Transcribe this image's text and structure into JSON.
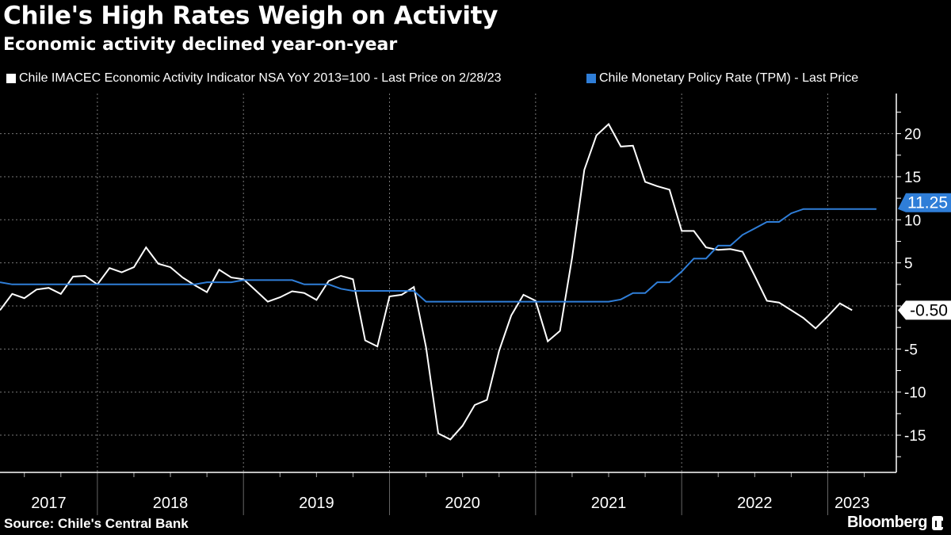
{
  "title": "Chile's High Rates Weigh on Activity",
  "subtitle": "Economic activity declined year-on-year",
  "source": "Source: Chile's Central Bank",
  "brand": "Bloomberg",
  "colors": {
    "background": "#000000",
    "imacec": "#ffffff",
    "tpm": "#2f7ed8",
    "grid": "#666666"
  },
  "chart_data": {
    "type": "line",
    "title": "Chile's High Rates Weigh on Activity",
    "subtitle": "Economic activity declined year-on-year",
    "x_tick_labels": [
      "2017",
      "2018",
      "2019",
      "2020",
      "2021",
      "2022",
      "2023"
    ],
    "y_ticks": [
      20,
      15,
      10,
      5,
      -5,
      -10,
      -15
    ],
    "ylim": [
      -19.2,
      24.6
    ],
    "grid": true,
    "y_axis_side": "right",
    "legend_placement": "top",
    "months": [
      "2017-04",
      "2017-05",
      "2017-06",
      "2017-07",
      "2017-08",
      "2017-09",
      "2017-10",
      "2017-11",
      "2017-12",
      "2018-01",
      "2018-02",
      "2018-03",
      "2018-04",
      "2018-05",
      "2018-06",
      "2018-07",
      "2018-08",
      "2018-09",
      "2018-10",
      "2018-11",
      "2018-12",
      "2019-01",
      "2019-02",
      "2019-03",
      "2019-04",
      "2019-05",
      "2019-06",
      "2019-07",
      "2019-08",
      "2019-09",
      "2019-10",
      "2019-11",
      "2019-12",
      "2020-01",
      "2020-02",
      "2020-03",
      "2020-04",
      "2020-05",
      "2020-06",
      "2020-07",
      "2020-08",
      "2020-09",
      "2020-10",
      "2020-11",
      "2020-12",
      "2021-01",
      "2021-02",
      "2021-03",
      "2021-04",
      "2021-05",
      "2021-06",
      "2021-07",
      "2021-08",
      "2021-09",
      "2021-10",
      "2021-11",
      "2021-12",
      "2022-01",
      "2022-02",
      "2022-03",
      "2022-04",
      "2022-05",
      "2022-06",
      "2022-07",
      "2022-08",
      "2022-09",
      "2022-10",
      "2022-11",
      "2022-12",
      "2023-01",
      "2023-02",
      "2023-03",
      "2023-04"
    ],
    "series": [
      {
        "name": "Chile IMACEC Economic Activity Indicator NSA YoY 2013=100 - Last Price on 2/28/23",
        "color": "#ffffff",
        "last_value_label": "-0.50",
        "values": [
          -0.5,
          1.4,
          0.9,
          1.9,
          2.1,
          1.4,
          3.4,
          3.5,
          2.5,
          4.4,
          3.9,
          4.5,
          6.8,
          4.9,
          4.5,
          3.3,
          2.4,
          1.6,
          4.2,
          3.3,
          3.1,
          1.8,
          0.5,
          1.0,
          1.7,
          1.5,
          0.7,
          2.9,
          3.5,
          3.1,
          -4.0,
          -4.7,
          1.1,
          1.3,
          2.2,
          -4.8,
          -14.8,
          -15.5,
          -13.9,
          -11.5,
          -10.9,
          -5.2,
          -1.1,
          1.3,
          0.6,
          -4.1,
          -2.9,
          5.6,
          15.8,
          19.8,
          21.1,
          18.5,
          18.6,
          14.4,
          13.9,
          13.5,
          8.7,
          8.7,
          6.8,
          6.5,
          6.6,
          6.3,
          3.5,
          0.6,
          0.4,
          -0.5,
          -1.4,
          -2.6,
          -1.2,
          0.3,
          -0.5
        ]
      },
      {
        "name": "Chile Monetary Policy Rate (TPM) - Last Price",
        "color": "#2f7ed8",
        "last_value_label": "11.25",
        "values": [
          2.75,
          2.5,
          2.5,
          2.5,
          2.5,
          2.5,
          2.5,
          2.5,
          2.5,
          2.5,
          2.5,
          2.5,
          2.5,
          2.5,
          2.5,
          2.5,
          2.5,
          2.75,
          2.75,
          2.75,
          3.0,
          3.0,
          3.0,
          3.0,
          3.0,
          2.5,
          2.5,
          2.5,
          2.0,
          1.75,
          1.75,
          1.75,
          1.75,
          1.75,
          1.75,
          0.5,
          0.5,
          0.5,
          0.5,
          0.5,
          0.5,
          0.5,
          0.5,
          0.5,
          0.5,
          0.5,
          0.5,
          0.5,
          0.5,
          0.5,
          0.5,
          0.75,
          1.5,
          1.5,
          2.75,
          2.75,
          4.0,
          5.5,
          5.5,
          7.0,
          7.0,
          8.25,
          9.0,
          9.75,
          9.75,
          10.75,
          11.25,
          11.25,
          11.25,
          11.25,
          11.25,
          11.25,
          11.25
        ]
      }
    ]
  }
}
